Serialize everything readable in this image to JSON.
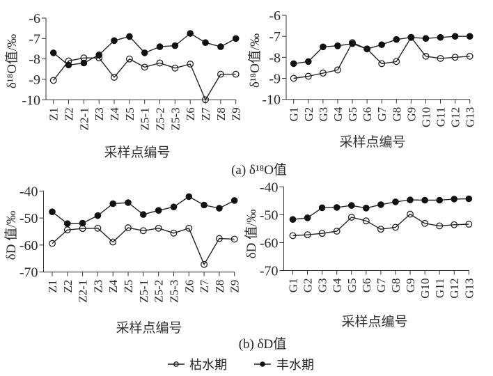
{
  "figure": {
    "caption_a": "(a) δ¹⁸O值",
    "caption_b": "(b) δD值",
    "legend": [
      {
        "label": "枯水期",
        "marker": "open-circle"
      },
      {
        "label": "丰水期",
        "marker": "filled-circle"
      }
    ]
  },
  "colors": {
    "line": "#222222",
    "axis": "#333333",
    "text": "#222222"
  },
  "chart_data": [
    {
      "panel": "a-left",
      "type": "line",
      "title": "(a) δ¹⁸O值",
      "xlabel": "采样点编号",
      "ylabel": "δ¹⁸O值/‰",
      "ylim": [
        -10,
        -6
      ],
      "yticks": [
        -6,
        -7,
        -8,
        -9,
        -10
      ],
      "grid": false,
      "legend": "bottom-center",
      "categories": [
        "Z1",
        "Z2",
        "Z2-1",
        "Z3",
        "Z4",
        "Z5",
        "Z5-1",
        "Z5-2",
        "Z5-3",
        "Z6",
        "Z7",
        "Z8",
        "Z9"
      ],
      "series": [
        {
          "name": "枯水期",
          "marker": "open-circle",
          "values": [
            -9.05,
            -8.1,
            -7.95,
            -7.95,
            -8.9,
            -8.0,
            -8.4,
            -8.2,
            -8.45,
            -8.25,
            -10.0,
            -8.75,
            -8.75
          ]
        },
        {
          "name": "丰水期",
          "marker": "filled-circle",
          "values": [
            -7.7,
            -8.3,
            -8.2,
            -7.8,
            -7.1,
            -6.9,
            -7.7,
            -7.4,
            -7.35,
            -6.75,
            -7.2,
            -7.4,
            -7.0
          ]
        }
      ]
    },
    {
      "panel": "a-right",
      "type": "line",
      "title": "(a) δ¹⁸O值",
      "xlabel": "采样点编号",
      "ylabel": "δ¹⁸O值/‰",
      "ylim": [
        -10,
        -6
      ],
      "yticks": [
        -6,
        -7,
        -8,
        -9,
        -10
      ],
      "grid": false,
      "legend": "bottom-center",
      "categories": [
        "G1",
        "G2",
        "G3",
        "G4",
        "G5",
        "G6",
        "G7",
        "G8",
        "G9",
        "G10",
        "G11",
        "G12",
        "G13"
      ],
      "series": [
        {
          "name": "枯水期",
          "marker": "open-circle",
          "values": [
            -9.0,
            -8.9,
            -8.75,
            -8.6,
            -7.3,
            -7.6,
            -8.3,
            -8.2,
            -7.05,
            -7.95,
            -8.05,
            -8.0,
            -7.95
          ]
        },
        {
          "name": "丰水期",
          "marker": "filled-circle",
          "values": [
            -8.3,
            -8.2,
            -7.5,
            -7.45,
            -7.35,
            -7.6,
            -7.4,
            -7.15,
            -7.05,
            -7.1,
            -7.05,
            -7.0,
            -7.0
          ]
        }
      ]
    },
    {
      "panel": "b-left",
      "type": "line",
      "title": "(b) δD值",
      "xlabel": "采样点编号",
      "ylabel": "δD 值/‰",
      "ylim": [
        -70,
        -40
      ],
      "yticks": [
        -40,
        -50,
        -60,
        -70
      ],
      "grid": false,
      "legend": "bottom-center",
      "categories": [
        "Z1",
        "Z2",
        "Z2-1",
        "Z3",
        "Z4",
        "Z5",
        "Z5-1",
        "Z5-2",
        "Z5-3",
        "Z6",
        "Z7",
        "Z8",
        "Z9"
      ],
      "series": [
        {
          "name": "枯水期",
          "marker": "open-circle",
          "values": [
            -59.4,
            -54.4,
            -53.9,
            -53.8,
            -58.9,
            -53.6,
            -54.7,
            -53.8,
            -55.6,
            -53.8,
            -67.2,
            -57.6,
            -57.8
          ]
        },
        {
          "name": "丰水期",
          "marker": "filled-circle",
          "values": [
            -47.7,
            -52.1,
            -51.9,
            -49.1,
            -44.7,
            -44.3,
            -48.7,
            -47.2,
            -45.9,
            -42.1,
            -45.2,
            -46.4,
            -43.5
          ]
        }
      ]
    },
    {
      "panel": "b-right",
      "type": "line",
      "title": "(b) δD值",
      "xlabel": "采样点编号",
      "ylabel": "δD 值/‰",
      "ylim": [
        -70,
        -40
      ],
      "yticks": [
        -40,
        -50,
        -60,
        -70
      ],
      "grid": false,
      "legend": "bottom-center",
      "categories": [
        "G1",
        "G2",
        "G3",
        "G4",
        "G5",
        "G6",
        "G7",
        "G8",
        "G9",
        "G10",
        "G11",
        "G12",
        "G13"
      ],
      "series": [
        {
          "name": "枯水期",
          "marker": "open-circle",
          "values": [
            -57.5,
            -57.2,
            -56.7,
            -55.9,
            -50.9,
            -52.2,
            -55.2,
            -54.5,
            -49.8,
            -53.1,
            -54.0,
            -53.6,
            -53.4
          ]
        },
        {
          "name": "丰水期",
          "marker": "filled-circle",
          "values": [
            -51.7,
            -51.1,
            -47.5,
            -47.4,
            -46.7,
            -47.6,
            -46.4,
            -45.4,
            -44.7,
            -44.8,
            -44.8,
            -44.4,
            -44.3
          ]
        }
      ]
    }
  ]
}
